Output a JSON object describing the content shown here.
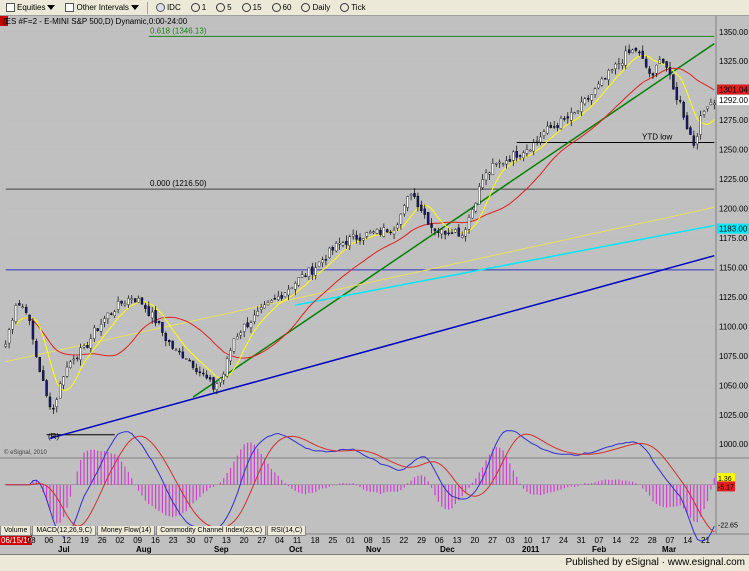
{
  "toolbar": {
    "items": [
      {
        "name": "equities-menu",
        "label": "Equities"
      },
      {
        "name": "other-intervals-menu",
        "label": "Other Intervals"
      },
      {
        "name": "interval-idc",
        "label": "IDC"
      },
      {
        "name": "interval-1",
        "label": "1"
      },
      {
        "name": "interval-5",
        "label": "5"
      },
      {
        "name": "interval-15",
        "label": "15"
      },
      {
        "name": "interval-60",
        "label": "60"
      },
      {
        "name": "interval-daily",
        "label": "Daily"
      },
      {
        "name": "interval-tick",
        "label": "Tick"
      }
    ]
  },
  "symbol_title": "(ES #F=2 - E-MINI S&P 500,D) Dynamic,0:00-24:00",
  "footer": {
    "published_by": "Published by eSignal",
    "url": "www.esignal.com"
  },
  "esignal_mark": "© eSignal, 2010",
  "tabs": [
    "Volume",
    "MACD(12,26,9,C)",
    "Money Flow(14)",
    "Commodity Channel Index(23,C)",
    "RSI(14,C)"
  ],
  "colors": {
    "background": "#c0c0c0",
    "up_bar": "#ffffff",
    "down_bar": "#1a1a70",
    "ma_fast": "#ffff00",
    "ma_red": "#e02020",
    "ma_cyan": "#00e8ff",
    "trend_green": "#008000",
    "trend_blue": "#0000c0",
    "hline_blue": "#3030c0",
    "fib_green": "#208020",
    "macd_hist": "#d040d0",
    "setup_green": "#008800",
    "setup_red": "#cc0000"
  },
  "chart_data": {
    "type": "candlestick",
    "title": "(ES #F=2 - E-MINI S&P 500,D) Dynamic,0:00-24:00",
    "y_axis": {
      "min": 990,
      "max": 1360,
      "ticks": [
        1000,
        1025,
        1050,
        1075,
        1100,
        1125,
        1150,
        1175,
        1200,
        1225,
        1250,
        1275,
        1300,
        1325,
        1350
      ]
    },
    "x_axis": {
      "ticks": [
        {
          "label": "06/15/10",
          "highlight": true
        },
        {
          "label": "28"
        },
        {
          "label": "06"
        },
        {
          "label": "12"
        },
        {
          "label": "19"
        },
        {
          "label": "26"
        },
        {
          "label": "02"
        },
        {
          "label": "09"
        },
        {
          "label": "16"
        },
        {
          "label": "23"
        },
        {
          "label": "30"
        },
        {
          "label": "07"
        },
        {
          "label": "13"
        },
        {
          "label": "20"
        },
        {
          "label": "27"
        },
        {
          "label": "04"
        },
        {
          "label": "11"
        },
        {
          "label": "18"
        },
        {
          "label": "25"
        },
        {
          "label": "01"
        },
        {
          "label": "08"
        },
        {
          "label": "15"
        },
        {
          "label": "22"
        },
        {
          "label": "29"
        },
        {
          "label": "06"
        },
        {
          "label": "13"
        },
        {
          "label": "20"
        },
        {
          "label": "27"
        },
        {
          "label": "03"
        },
        {
          "label": "10"
        },
        {
          "label": "17"
        },
        {
          "label": "24"
        },
        {
          "label": "31"
        },
        {
          "label": "07"
        },
        {
          "label": "14"
        },
        {
          "label": "22"
        },
        {
          "label": "28"
        },
        {
          "label": "07"
        },
        {
          "label": "14"
        },
        {
          "label": "21"
        }
      ],
      "months": [
        "Jul",
        "Aug",
        "Sep",
        "Oct",
        "Nov",
        "Dec",
        "2011",
        "Feb",
        "Mar"
      ]
    },
    "price_key_points": [
      [
        0,
        1085
      ],
      [
        3,
        1120
      ],
      [
        6,
        1115
      ],
      [
        9,
        1075
      ],
      [
        12,
        1040
      ],
      [
        14,
        1030
      ],
      [
        17,
        1060
      ],
      [
        20,
        1075
      ],
      [
        23,
        1080
      ],
      [
        26,
        1095
      ],
      [
        30,
        1110
      ],
      [
        34,
        1120
      ],
      [
        37,
        1125
      ],
      [
        40,
        1120
      ],
      [
        44,
        1105
      ],
      [
        47,
        1090
      ],
      [
        50,
        1078
      ],
      [
        53,
        1075
      ],
      [
        56,
        1065
      ],
      [
        59,
        1055
      ],
      [
        61,
        1048
      ],
      [
        64,
        1060
      ],
      [
        67,
        1090
      ],
      [
        70,
        1100
      ],
      [
        74,
        1110
      ],
      [
        78,
        1120
      ],
      [
        82,
        1130
      ],
      [
        86,
        1140
      ],
      [
        90,
        1148
      ],
      [
        94,
        1160
      ],
      [
        98,
        1170
      ],
      [
        102,
        1175
      ],
      [
        106,
        1178
      ],
      [
        110,
        1180
      ],
      [
        114,
        1185
      ],
      [
        117,
        1200
      ],
      [
        119,
        1215
      ],
      [
        122,
        1200
      ],
      [
        125,
        1185
      ],
      [
        128,
        1180
      ],
      [
        131,
        1183
      ],
      [
        134,
        1178
      ],
      [
        137,
        1200
      ],
      [
        140,
        1225
      ],
      [
        143,
        1235
      ],
      [
        146,
        1240
      ],
      [
        149,
        1245
      ],
      [
        152,
        1250
      ],
      [
        155,
        1255
      ],
      [
        158,
        1265
      ],
      [
        161,
        1270
      ],
      [
        164,
        1275
      ],
      [
        167,
        1280
      ],
      [
        170,
        1290
      ],
      [
        173,
        1300
      ],
      [
        176,
        1310
      ],
      [
        179,
        1320
      ],
      [
        182,
        1330
      ],
      [
        185,
        1335
      ],
      [
        187,
        1325
      ],
      [
        190,
        1310
      ],
      [
        192,
        1330
      ],
      [
        194,
        1320
      ],
      [
        196,
        1300
      ],
      [
        198,
        1290
      ],
      [
        200,
        1270
      ],
      [
        202,
        1255
      ],
      [
        204,
        1275
      ],
      [
        206,
        1290
      ],
      [
        208,
        1292
      ]
    ],
    "bar_count": 209,
    "current_prices": [
      {
        "label": "1301.04",
        "value": 1301.04,
        "color": "#e02020"
      },
      {
        "label": "1292.00",
        "value": 1292,
        "color": "#ffffff"
      },
      {
        "label": "1183.00",
        "value": 1183,
        "color": "#00e8ff"
      }
    ],
    "annotations": [
      {
        "text": "0.618 (1346.13)",
        "value": 1346.13
      },
      {
        "text": "0.000 (1216.50)",
        "value": 1216.5
      },
      {
        "text": "YTD low",
        "value": 1256
      },
      {
        "text": "(R)",
        "value": 1002
      }
    ],
    "horizontal_lines": [
      {
        "value": 1346.13,
        "color": "#208020",
        "from": 42,
        "to": 209
      },
      {
        "value": 1216.5,
        "color": "#404040",
        "from": 0,
        "to": 209
      },
      {
        "value": 1148,
        "color": "#3030c0",
        "from": 0,
        "to": 209
      },
      {
        "value": 1256,
        "color": "#000000",
        "from": 150,
        "to": 209
      },
      {
        "value": 1008,
        "color": "#000000",
        "from": 12,
        "to": 33
      }
    ],
    "trendlines": [
      {
        "color": "#008000",
        "from": [
          55,
          1040
        ],
        "to": [
          209,
          1340
        ]
      },
      {
        "color": "#0000c0",
        "from": [
          13,
          1005
        ],
        "to": [
          209,
          1160
        ]
      }
    ],
    "macd": {
      "labels": [
        "1.36",
        "-5.17",
        "-22.65"
      ],
      "range": [
        -25,
        15
      ]
    }
  }
}
